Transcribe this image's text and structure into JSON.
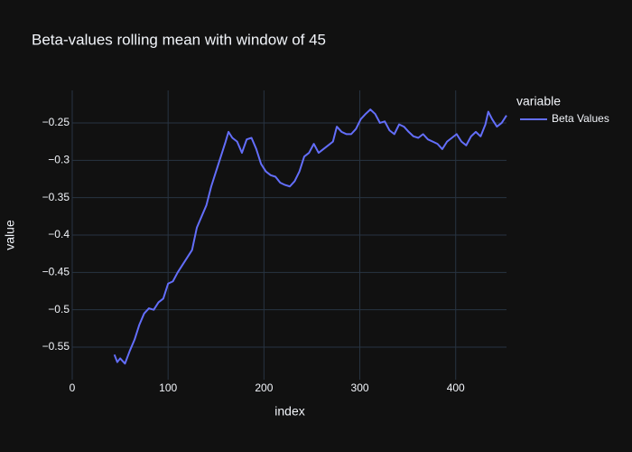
{
  "chart_data": {
    "type": "line",
    "title": "Beta-values rolling mean with window of 45",
    "x_label": "index",
    "y_label": "value",
    "legend_title": "variable",
    "x": [
      44,
      47,
      50,
      55,
      60,
      65,
      70,
      75,
      80,
      85,
      90,
      95,
      100,
      105,
      110,
      115,
      120,
      125,
      130,
      135,
      140,
      145,
      150,
      155,
      160,
      163,
      167,
      172,
      177,
      182,
      187,
      192,
      197,
      202,
      207,
      212,
      217,
      222,
      227,
      232,
      237,
      242,
      247,
      252,
      257,
      262,
      267,
      272,
      276,
      281,
      286,
      291,
      296,
      301,
      306,
      311,
      316,
      321,
      326,
      331,
      336,
      341,
      346,
      351,
      356,
      361,
      366,
      371,
      376,
      381,
      386,
      391,
      396,
      401,
      406,
      411,
      416,
      421,
      426,
      431,
      434,
      438,
      443,
      448,
      453
    ],
    "series": [
      {
        "name": "Beta Values",
        "color": "#636efa",
        "values": [
          -0.56,
          -0.57,
          -0.565,
          -0.572,
          -0.555,
          -0.54,
          -0.52,
          -0.505,
          -0.498,
          -0.5,
          -0.49,
          -0.485,
          -0.465,
          -0.462,
          -0.45,
          -0.44,
          -0.43,
          -0.42,
          -0.39,
          -0.375,
          -0.36,
          -0.335,
          -0.315,
          -0.295,
          -0.275,
          -0.262,
          -0.27,
          -0.275,
          -0.29,
          -0.272,
          -0.27,
          -0.285,
          -0.305,
          -0.315,
          -0.32,
          -0.322,
          -0.33,
          -0.333,
          -0.335,
          -0.328,
          -0.315,
          -0.295,
          -0.29,
          -0.278,
          -0.29,
          -0.285,
          -0.28,
          -0.275,
          -0.255,
          -0.262,
          -0.265,
          -0.265,
          -0.258,
          -0.245,
          -0.238,
          -0.232,
          -0.238,
          -0.25,
          -0.248,
          -0.26,
          -0.265,
          -0.252,
          -0.255,
          -0.262,
          -0.268,
          -0.27,
          -0.265,
          -0.272,
          -0.275,
          -0.278,
          -0.285,
          -0.275,
          -0.27,
          -0.265,
          -0.275,
          -0.28,
          -0.268,
          -0.262,
          -0.268,
          -0.252,
          -0.235,
          -0.245,
          -0.255,
          -0.25,
          -0.24
        ]
      }
    ],
    "xlim": [
      0,
      453
    ],
    "xticks": [
      0,
      100,
      200,
      300,
      400
    ],
    "ylim": [
      -0.5935,
      -0.2065
    ],
    "yticks": [
      {
        "value": -0.55,
        "label": "−0.55"
      },
      {
        "value": -0.5,
        "label": "−0.5"
      },
      {
        "value": -0.45,
        "label": "−0.45"
      },
      {
        "value": -0.4,
        "label": "−0.4"
      },
      {
        "value": -0.35,
        "label": "−0.35"
      },
      {
        "value": -0.3,
        "label": "−0.3"
      },
      {
        "value": -0.25,
        "label": "−0.25"
      }
    ],
    "grid": true
  }
}
